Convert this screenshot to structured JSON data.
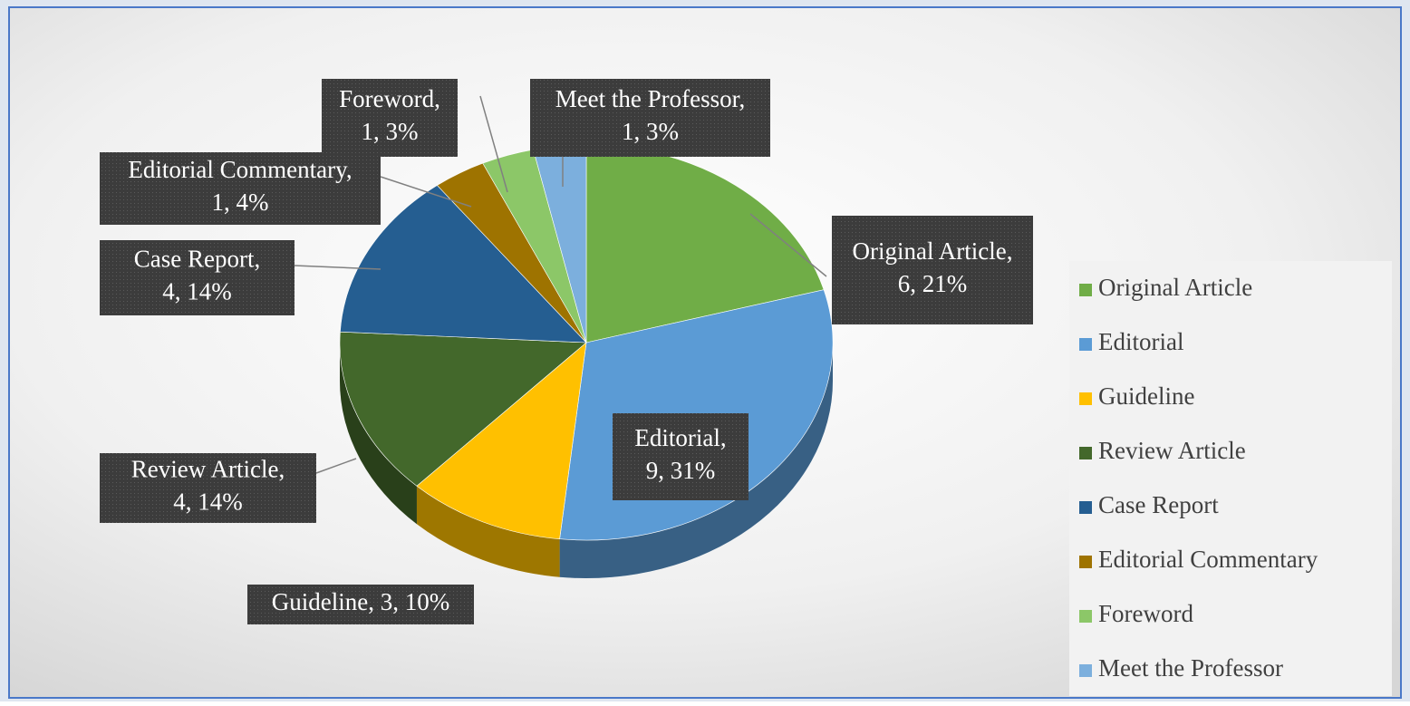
{
  "chart_data": {
    "type": "pie",
    "categories": [
      "Original Article",
      "Editorial",
      "Guideline",
      "Review Article",
      "Case Report",
      "Editorial Commentary",
      "Foreword",
      "Meet the Professor"
    ],
    "values": [
      6,
      9,
      3,
      4,
      4,
      1,
      1,
      1
    ],
    "value_labels": [
      [
        "Original Article,",
        "6, 21%"
      ],
      [
        "Editorial,",
        "9, 31%"
      ],
      [
        "Guideline, 3, 10%"
      ],
      [
        "Review Article,",
        "4, 14%"
      ],
      [
        "Case Report,",
        "4, 14%"
      ],
      [
        "Editorial Commentary,",
        "1, 4%"
      ],
      [
        "Foreword,",
        "1, 3%"
      ],
      [
        "Meet the Professor,",
        "1, 3%"
      ]
    ],
    "colors": [
      "#70ad47",
      "#5b9bd5",
      "#ffc000",
      "#43682b",
      "#255e91",
      "#9e7300",
      "#8cc768",
      "#7cafdd"
    ],
    "legend": "right"
  }
}
